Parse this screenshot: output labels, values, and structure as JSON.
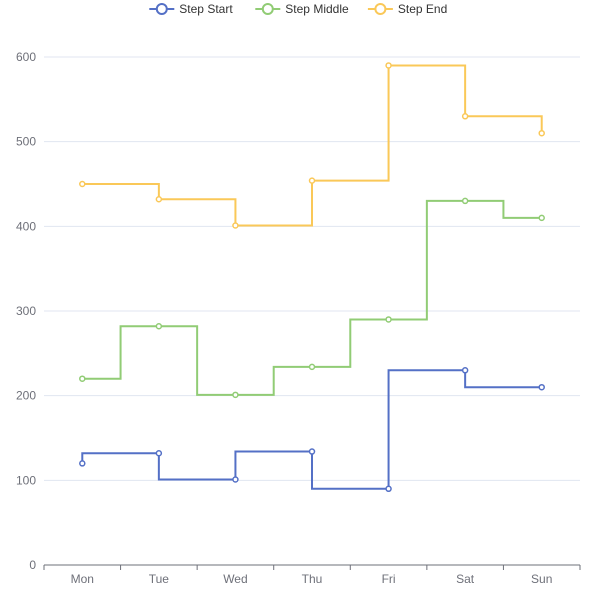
{
  "chart_data": {
    "type": "line",
    "subtype": "step",
    "title": "",
    "xlabel": "",
    "ylabel": "",
    "categories": [
      "Mon",
      "Tue",
      "Wed",
      "Thu",
      "Fri",
      "Sat",
      "Sun"
    ],
    "ylim": [
      0,
      600
    ],
    "yticks": [
      0,
      100,
      200,
      300,
      400,
      500,
      600
    ],
    "grid": true,
    "legend_position": "top-center",
    "series": [
      {
        "name": "Step Start",
        "step": "start",
        "color": "#5470c6",
        "values": [
          120,
          132,
          101,
          134,
          90,
          230,
          210
        ]
      },
      {
        "name": "Step Middle",
        "step": "middle",
        "color": "#91cc75",
        "values": [
          220,
          282,
          201,
          234,
          290,
          430,
          410
        ]
      },
      {
        "name": "Step End",
        "step": "end",
        "color": "#fac858",
        "values": [
          450,
          432,
          401,
          454,
          590,
          530,
          510
        ]
      }
    ]
  }
}
